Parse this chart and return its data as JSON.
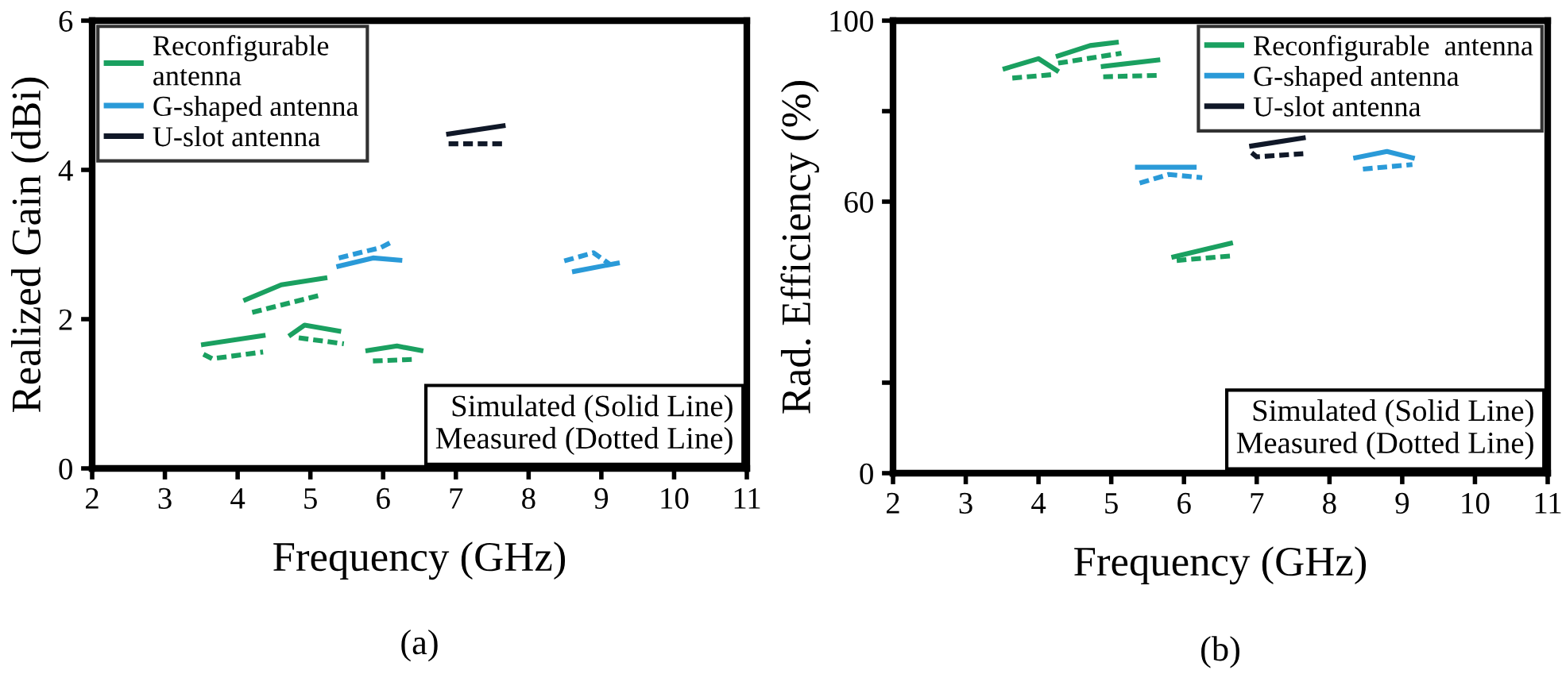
{
  "chart_data": [
    {
      "type": "line",
      "xlabel": "Frequency (GHz)",
      "ylabel": "Realized Gain (dBi)",
      "xlim": [
        2,
        11
      ],
      "xticks": [
        2,
        3,
        4,
        5,
        6,
        7,
        8,
        9,
        10,
        11
      ],
      "ylim": [
        0,
        6
      ],
      "yticks": [
        0,
        2,
        4,
        6
      ],
      "grid": false,
      "legend": "top left",
      "marker": "none",
      "annotations": [
        "Simulated (Solid Line)\nMeasured (Dotted Line)",
        "(a)"
      ],
      "series": [
        {
          "name": "Reconfigurable\nantenna",
          "color": "#1aa060",
          "line_style": "solid",
          "x": [
            3.53,
            4.35
          ],
          "values": [
            1.66,
            1.78
          ]
        },
        {
          "color": "#1aa060",
          "line_style": "dashed",
          "x": [
            3.53,
            3.65,
            4.35
          ],
          "values": [
            1.53,
            1.47,
            1.56
          ]
        },
        {
          "color": "#1aa060",
          "line_style": "solid",
          "x": [
            4.11,
            4.6,
            5.2
          ],
          "values": [
            2.26,
            2.46,
            2.55
          ]
        },
        {
          "color": "#1aa060",
          "line_style": "dashed",
          "x": [
            4.2,
            5.13
          ],
          "values": [
            2.09,
            2.32
          ]
        },
        {
          "color": "#1aa060",
          "line_style": "solid",
          "x": [
            4.73,
            4.92,
            5.39
          ],
          "values": [
            1.79,
            1.92,
            1.84
          ]
        },
        {
          "color": "#1aa060",
          "line_style": "dashed",
          "x": [
            4.84,
            5.46
          ],
          "values": [
            1.75,
            1.67
          ]
        },
        {
          "color": "#1aa060",
          "line_style": "solid",
          "x": [
            5.79,
            6.19,
            6.52
          ],
          "values": [
            1.58,
            1.64,
            1.58
          ]
        },
        {
          "color": "#1aa060",
          "line_style": "dashed",
          "x": [
            5.86,
            6.41
          ],
          "values": [
            1.44,
            1.46
          ]
        },
        {
          "name": "G-shaped antenna",
          "color": "#2a9ad8",
          "line_style": "solid",
          "x": [
            5.39,
            5.86,
            6.23
          ],
          "values": [
            2.71,
            2.82,
            2.79
          ]
        },
        {
          "color": "#2a9ad8",
          "line_style": "dashed",
          "x": [
            5.39,
            5.97,
            6.15
          ],
          "values": [
            2.82,
            2.96,
            3.05
          ]
        },
        {
          "color": "#2a9ad8",
          "line_style": "solid",
          "x": [
            8.63,
            9.22
          ],
          "values": [
            2.64,
            2.75
          ]
        },
        {
          "color": "#2a9ad8",
          "line_style": "dashed",
          "x": [
            8.49,
            8.89,
            9.11
          ],
          "values": [
            2.78,
            2.89,
            2.74
          ]
        },
        {
          "name": "U-slot antenna",
          "color": "#101828",
          "line_style": "solid",
          "x": [
            6.9,
            7.65
          ],
          "values": [
            4.48,
            4.59
          ]
        },
        {
          "color": "#101828",
          "line_style": "dashed",
          "x": [
            6.9,
            7.65
          ],
          "values": [
            4.35,
            4.35
          ]
        }
      ]
    },
    {
      "type": "line",
      "xlabel": "Frequency (GHz)",
      "ylabel": "Rad. Efficiency (%)",
      "xlim": [
        2,
        11
      ],
      "xticks": [
        2,
        3,
        4,
        5,
        6,
        7,
        8,
        9,
        10,
        11
      ],
      "ylim": [
        0,
        100
      ],
      "yticks": [
        0,
        {
          "value": 20,
          "label": null
        },
        60,
        {
          "value": 80,
          "label": null
        },
        100
      ],
      "grid": false,
      "legend": "top right",
      "marker": "none",
      "annotations": [
        "Simulated (Solid Line)\nMeasured (Dotted Line)",
        "(b)"
      ],
      "series": [
        {
          "name": "Reconfigurable  antenna",
          "color": "#1aa060",
          "line_style": "solid",
          "x": [
            3.54,
            4.0,
            4.25
          ],
          "values": [
            89.4,
            91.6,
            89.0
          ]
        },
        {
          "color": "#1aa060",
          "line_style": "dashed",
          "x": [
            3.64,
            4.21
          ],
          "values": [
            87.3,
            88.1
          ]
        },
        {
          "color": "#1aa060",
          "line_style": "solid",
          "x": [
            4.27,
            4.71,
            5.07
          ],
          "values": [
            92.2,
            94.5,
            95.2
          ]
        },
        {
          "color": "#1aa060",
          "line_style": "dashed",
          "x": [
            4.27,
            5.14
          ],
          "values": [
            90.6,
            92.8
          ]
        },
        {
          "color": "#1aa060",
          "line_style": "solid",
          "x": [
            4.89,
            5.64
          ],
          "values": [
            89.9,
            91.3
          ]
        },
        {
          "color": "#1aa060",
          "line_style": "dashed",
          "x": [
            4.89,
            5.64
          ],
          "values": [
            87.6,
            87.9
          ]
        },
        {
          "color": "#1aa060",
          "line_style": "solid",
          "x": [
            5.86,
            6.64
          ],
          "values": [
            47.8,
            50.8
          ]
        },
        {
          "color": "#1aa060",
          "line_style": "dashed",
          "x": [
            5.9,
            6.64
          ],
          "values": [
            47.0,
            48.0
          ]
        },
        {
          "name": "G-shaped antenna",
          "color": "#2a9ad8",
          "line_style": "solid",
          "x": [
            5.36,
            6.14
          ],
          "values": [
            67.6,
            67.6
          ]
        },
        {
          "color": "#2a9ad8",
          "line_style": "dashed",
          "x": [
            5.39,
            5.79,
            6.25
          ],
          "values": [
            64.1,
            66.0,
            65.3
          ]
        },
        {
          "color": "#2a9ad8",
          "line_style": "solid",
          "x": [
            8.36,
            8.79,
            9.14
          ],
          "values": [
            69.7,
            71.1,
            69.7
          ]
        },
        {
          "color": "#2a9ad8",
          "line_style": "dashed",
          "x": [
            8.46,
            9.14
          ],
          "values": [
            67.2,
            68.2
          ]
        },
        {
          "name": "U-slot antenna",
          "color": "#101828",
          "line_style": "solid",
          "x": [
            6.93,
            7.64
          ],
          "values": [
            72.3,
            74.1
          ]
        },
        {
          "color": "#101828",
          "line_style": "dashed",
          "x": [
            6.93,
            7.0,
            7.64
          ],
          "values": [
            70.8,
            69.9,
            70.6
          ]
        }
      ]
    }
  ]
}
